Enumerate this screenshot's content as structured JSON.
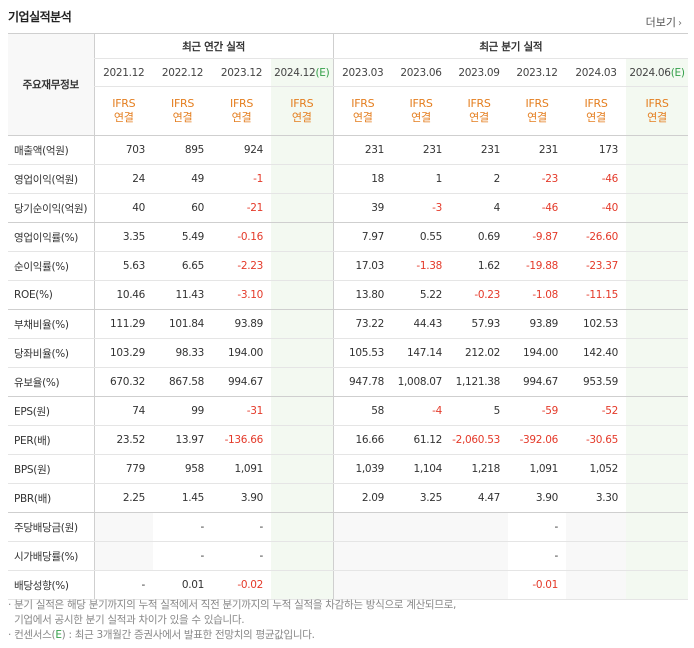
{
  "header": {
    "title": "기업실적분석",
    "more_label": "더보기"
  },
  "table": {
    "row_header_label": "주요재무정보",
    "groups": {
      "annual": "최근 연간 실적",
      "quarter": "최근 분기 실적"
    },
    "periods": [
      "2021.12",
      "2022.12",
      "2023.12",
      "2024.12",
      "2023.03",
      "2023.06",
      "2023.09",
      "2023.12",
      "2024.03",
      "2024.06"
    ],
    "estimate_mark": "(E)",
    "ifrs_label": "IFRS",
    "consolidated_label": "연결",
    "rows": [
      {
        "label": "매출액(억원)",
        "values": [
          "703",
          "895",
          "924",
          "",
          "231",
          "231",
          "231",
          "231",
          "173",
          ""
        ]
      },
      {
        "label": "영업이익(억원)",
        "values": [
          "24",
          "49",
          "-1",
          "",
          "18",
          "1",
          "2",
          "-23",
          "-46",
          ""
        ]
      },
      {
        "label": "당기순이익(억원)",
        "values": [
          "40",
          "60",
          "-21",
          "",
          "39",
          "-3",
          "4",
          "-46",
          "-40",
          ""
        ]
      },
      {
        "label": "영업이익률(%)",
        "values": [
          "3.35",
          "5.49",
          "-0.16",
          "",
          "7.97",
          "0.55",
          "0.69",
          "-9.87",
          "-26.60",
          ""
        ]
      },
      {
        "label": "순이익률(%)",
        "values": [
          "5.63",
          "6.65",
          "-2.23",
          "",
          "17.03",
          "-1.38",
          "1.62",
          "-19.88",
          "-23.37",
          ""
        ]
      },
      {
        "label": "ROE(%)",
        "values": [
          "10.46",
          "11.43",
          "-3.10",
          "",
          "13.80",
          "5.22",
          "-0.23",
          "-1.08",
          "-11.15",
          ""
        ]
      },
      {
        "label": "부채비율(%)",
        "values": [
          "111.29",
          "101.84",
          "93.89",
          "",
          "73.22",
          "44.43",
          "57.93",
          "93.89",
          "102.53",
          ""
        ]
      },
      {
        "label": "당좌비율(%)",
        "values": [
          "103.29",
          "98.33",
          "194.00",
          "",
          "105.53",
          "147.14",
          "212.02",
          "194.00",
          "142.40",
          ""
        ]
      },
      {
        "label": "유보율(%)",
        "values": [
          "670.32",
          "867.58",
          "994.67",
          "",
          "947.78",
          "1,008.07",
          "1,121.38",
          "994.67",
          "953.59",
          ""
        ]
      },
      {
        "label": "EPS(원)",
        "values": [
          "74",
          "99",
          "-31",
          "",
          "58",
          "-4",
          "5",
          "-59",
          "-52",
          ""
        ]
      },
      {
        "label": "PER(배)",
        "values": [
          "23.52",
          "13.97",
          "-136.66",
          "",
          "16.66",
          "61.12",
          "-2,060.53",
          "-392.06",
          "-30.65",
          ""
        ]
      },
      {
        "label": "BPS(원)",
        "values": [
          "779",
          "958",
          "1,091",
          "",
          "1,039",
          "1,104",
          "1,218",
          "1,091",
          "1,052",
          ""
        ]
      },
      {
        "label": "PBR(배)",
        "values": [
          "2.25",
          "1.45",
          "3.90",
          "",
          "2.09",
          "3.25",
          "4.47",
          "3.90",
          "3.30",
          ""
        ]
      },
      {
        "label": "주당배당금(원)",
        "values": [
          "",
          "-",
          "-",
          "",
          "",
          "",
          "",
          "-",
          "",
          ""
        ]
      },
      {
        "label": "시가배당률(%)",
        "values": [
          "",
          "-",
          "-",
          "",
          "",
          "",
          "",
          "-",
          "",
          ""
        ]
      },
      {
        "label": "배당성향(%)",
        "values": [
          "-",
          "0.01",
          "-0.02",
          "",
          "",
          "",
          "",
          "-0.01",
          "",
          ""
        ]
      }
    ]
  },
  "notes": {
    "line1": "· 분기 실적은 해당 분기까지의 누적 실적에서 직전 분기까지의 누적 실적을 차감하는 방식으로 계산되므로,",
    "line2": "  기업에서 공시한 분기 실적과 차이가 있을 수 있습니다.",
    "line3_prefix": "· 컨센서스(",
    "line3_e": "E",
    "line3_suffix": ") : 최근 3개월간 증권사에서 발표한 전망치의 평균값입니다."
  },
  "colors": {
    "ifrs": "#e47e1f",
    "negative": "#e43a2a",
    "estimate": "#35a04b"
  }
}
